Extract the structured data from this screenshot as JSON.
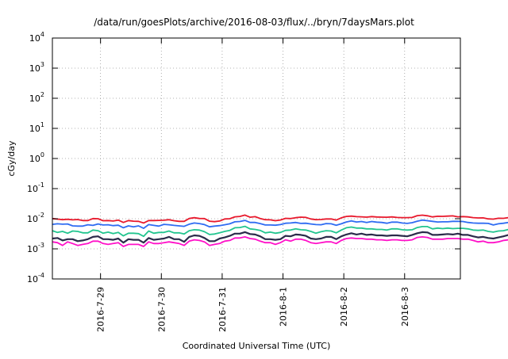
{
  "chart_data": {
    "type": "line",
    "title": "/data/run/goesPlots/archive/2016-08-03/flux/../bryn/7daysMars.plot",
    "xlabel": "Coordinated Universal Time (UTC)",
    "ylabel": "cGy/day",
    "yscale": "log",
    "ylim": [
      0.0001,
      10000
    ],
    "y_ticks": [
      {
        "base": "10",
        "exp": "-4"
      },
      {
        "base": "10",
        "exp": "-3"
      },
      {
        "base": "10",
        "exp": "-2"
      },
      {
        "base": "10",
        "exp": "-1"
      },
      {
        "base": "10",
        "exp": "0"
      },
      {
        "base": "10",
        "exp": "1"
      },
      {
        "base": "10",
        "exp": "2"
      },
      {
        "base": "10",
        "exp": "3"
      },
      {
        "base": "10",
        "exp": "4"
      }
    ],
    "x_ticks": [
      "2016-7-29",
      "2016-7-30",
      "2016-7-31",
      "2016-8-1",
      "2016-8-2",
      "2016-8-3"
    ],
    "xlim": [
      "2016-07-28T05:00",
      "2016-08-03T22:00"
    ],
    "grid": true,
    "x_step_hours": 2,
    "series": [
      {
        "color": "#e8192c",
        "values": [
          0.0101,
          0.0097,
          0.0093,
          0.0096,
          0.0092,
          0.0094,
          0.0087,
          0.0087,
          0.0101,
          0.01,
          0.0086,
          0.0087,
          0.0084,
          0.009,
          0.0075,
          0.0087,
          0.0083,
          0.0082,
          0.0072,
          0.0087,
          0.0087,
          0.0088,
          0.0089,
          0.0093,
          0.0086,
          0.0082,
          0.0082,
          0.0102,
          0.0108,
          0.0102,
          0.0101,
          0.0083,
          0.008,
          0.0084,
          0.0098,
          0.01,
          0.0116,
          0.0119,
          0.0132,
          0.0112,
          0.0117,
          0.0102,
          0.0093,
          0.0092,
          0.0086,
          0.0091,
          0.0103,
          0.0101,
          0.0108,
          0.0113,
          0.0111,
          0.0098,
          0.0093,
          0.0094,
          0.0098,
          0.0098,
          0.009,
          0.0107,
          0.0119,
          0.0122,
          0.0117,
          0.0116,
          0.0113,
          0.0118,
          0.0114,
          0.0113,
          0.0112,
          0.0115,
          0.011,
          0.0109,
          0.0109,
          0.011,
          0.0127,
          0.0131,
          0.0125,
          0.0115,
          0.0121,
          0.012,
          0.0122,
          0.0124,
          0.0116,
          0.0118,
          0.0115,
          0.0109,
          0.0106,
          0.0107,
          0.0099,
          0.0097,
          0.0104,
          0.0103,
          0.0109,
          0.0116,
          0.0125,
          0.0126,
          0.0128,
          0.0124,
          0.0122,
          0.0117,
          0.0111,
          0.0112,
          0.0107,
          0.0104,
          0.0108,
          0.0105,
          0.0102,
          0.0106,
          0.0118,
          0.0125,
          0.013,
          0.013,
          0.0132,
          0.0123,
          0.0106,
          0.0083,
          0.0086,
          0.0091,
          0.0098,
          0.0108,
          0.0111,
          0.0108,
          0.0115,
          0.0123,
          0.0124,
          0.0124,
          0.0125,
          0.0134,
          0.013,
          0.0116,
          0.0108,
          0.0091,
          0.0091,
          0.009,
          0.0099,
          0.009,
          0.0102,
          0.0095,
          0.0091,
          0.0099,
          0.0114,
          0.0126,
          0.0121,
          0.0114,
          0.01,
          0.0089,
          0.0081,
          0.0081,
          0.0082,
          0.0086,
          0.0085,
          0.0093,
          0.0101,
          0.0105,
          0.011,
          0.0114,
          0.011,
          0.0108,
          0.0115,
          0.0115,
          0.0121,
          0.0118,
          0.0114,
          0.0114,
          0.0117,
          0.0118,
          0.0129,
          0.013,
          0.0125,
          0.0127,
          0.0124,
          0.012,
          0.0109,
          0.0102,
          0.0101,
          0.0101,
          0.0107,
          0.0112,
          0.0117,
          0.0121,
          0.0125,
          0.0125,
          0.0128,
          0.0131,
          0.0129,
          0.0123,
          0.0121,
          0.0103,
          0.0091,
          0.0093,
          0.0091,
          0.0096,
          0.0103,
          0.0106
        ]
      },
      {
        "color": "#2f6cf2",
        "values": [
          0.0065,
          0.0068,
          0.0066,
          0.0067,
          0.0058,
          0.0057,
          0.0057,
          0.0063,
          0.006,
          0.0067,
          0.0062,
          0.0063,
          0.0059,
          0.0061,
          0.005,
          0.0058,
          0.0054,
          0.0058,
          0.0048,
          0.0064,
          0.006,
          0.0057,
          0.0065,
          0.0063,
          0.006,
          0.0058,
          0.0056,
          0.0066,
          0.0072,
          0.0069,
          0.0064,
          0.0054,
          0.0057,
          0.0059,
          0.0063,
          0.0068,
          0.0079,
          0.0081,
          0.0088,
          0.0075,
          0.0075,
          0.0069,
          0.0062,
          0.0062,
          0.0061,
          0.0064,
          0.0071,
          0.0072,
          0.0075,
          0.007,
          0.0071,
          0.0067,
          0.0064,
          0.0063,
          0.0069,
          0.0068,
          0.0061,
          0.0068,
          0.0078,
          0.0085,
          0.0078,
          0.0081,
          0.0075,
          0.0081,
          0.0077,
          0.0075,
          0.0071,
          0.0077,
          0.0077,
          0.0072,
          0.007,
          0.0074,
          0.0083,
          0.009,
          0.0086,
          0.0082,
          0.0078,
          0.0079,
          0.0079,
          0.0082,
          0.0082,
          0.0081,
          0.0075,
          0.0072,
          0.0071,
          0.0071,
          0.007,
          0.0062,
          0.0068,
          0.0071,
          0.0075,
          0.0075,
          0.0082,
          0.0086,
          0.0082,
          0.0079,
          0.0083,
          0.0077,
          0.0075,
          0.0071,
          0.0072,
          0.0069,
          0.007,
          0.0073,
          0.0065,
          0.0071,
          0.0083,
          0.0084,
          0.0083,
          0.0086,
          0.0088,
          0.0084,
          0.007,
          0.0057,
          0.0056,
          0.0061,
          0.0069,
          0.0069,
          0.0074,
          0.0073,
          0.0078,
          0.0081,
          0.0082,
          0.0083,
          0.0081,
          0.0088,
          0.0088,
          0.0074,
          0.0072,
          0.0061,
          0.006,
          0.0057,
          0.0064,
          0.0061,
          0.0067,
          0.0062,
          0.0061,
          0.0065,
          0.0078,
          0.0085,
          0.0081,
          0.0076,
          0.0066,
          0.0054,
          0.0053,
          0.0056,
          0.0056,
          0.0058,
          0.0058,
          0.006,
          0.007,
          0.0072,
          0.0075,
          0.0075,
          0.0071,
          0.0069,
          0.0079,
          0.0079,
          0.0078,
          0.0081,
          0.0079,
          0.0074,
          0.0078,
          0.0079,
          0.0083,
          0.0089,
          0.0083,
          0.0082,
          0.0082,
          0.0082,
          0.0073,
          0.0066,
          0.0064,
          0.0065,
          0.0069,
          0.0076,
          0.0077,
          0.0078,
          0.0081,
          0.0083,
          0.0087,
          0.0087,
          0.0084,
          0.0084,
          0.0082,
          0.0069,
          0.0061,
          0.0061,
          0.0062,
          0.0066,
          0.0065,
          0.0071
        ]
      },
      {
        "color": "#22c58f",
        "values": [
          0.004,
          0.0035,
          0.0038,
          0.0033,
          0.0039,
          0.0038,
          0.0034,
          0.0034,
          0.0042,
          0.004,
          0.0033,
          0.0036,
          0.0032,
          0.0035,
          0.0027,
          0.0033,
          0.0033,
          0.0032,
          0.0026,
          0.0039,
          0.0033,
          0.0035,
          0.0035,
          0.0039,
          0.0034,
          0.0034,
          0.0031,
          0.004,
          0.0043,
          0.0042,
          0.0037,
          0.003,
          0.0031,
          0.0034,
          0.0038,
          0.0041,
          0.005,
          0.0051,
          0.0056,
          0.0046,
          0.0044,
          0.0041,
          0.0034,
          0.0036,
          0.0033,
          0.0035,
          0.0041,
          0.0042,
          0.0046,
          0.0043,
          0.0042,
          0.0038,
          0.0033,
          0.0037,
          0.004,
          0.0039,
          0.0034,
          0.0042,
          0.005,
          0.0053,
          0.0049,
          0.0049,
          0.0046,
          0.0046,
          0.0044,
          0.0044,
          0.0042,
          0.0046,
          0.0046,
          0.0043,
          0.0042,
          0.0043,
          0.0051,
          0.0055,
          0.0055,
          0.0046,
          0.0049,
          0.0047,
          0.0049,
          0.0047,
          0.0048,
          0.0048,
          0.0046,
          0.0042,
          0.0041,
          0.0042,
          0.0038,
          0.0036,
          0.0039,
          0.004,
          0.0044,
          0.0047,
          0.005,
          0.0052,
          0.005,
          0.005,
          0.0049,
          0.0046,
          0.0042,
          0.0042,
          0.0041,
          0.0039,
          0.0043,
          0.0041,
          0.0038,
          0.0041,
          0.0049,
          0.0051,
          0.0052,
          0.0054,
          0.0054,
          0.0049,
          0.004,
          0.003,
          0.0031,
          0.0032,
          0.004,
          0.0041,
          0.0043,
          0.0043,
          0.0046,
          0.0048,
          0.0051,
          0.0049,
          0.0051,
          0.0055,
          0.0051,
          0.0044,
          0.004,
          0.0034,
          0.0034,
          0.0033,
          0.0037,
          0.0034,
          0.0039,
          0.0034,
          0.0035,
          0.004,
          0.0047,
          0.0052,
          0.0048,
          0.0043,
          0.0039,
          0.0031,
          0.0029,
          0.0031,
          0.0031,
          0.0032,
          0.003,
          0.0034,
          0.0041,
          0.0042,
          0.0045,
          0.0043,
          0.0044,
          0.004,
          0.0046,
          0.0047,
          0.0048,
          0.005,
          0.0046,
          0.0045,
          0.0045,
          0.0045,
          0.0052,
          0.0052,
          0.005,
          0.005,
          0.0046,
          0.0048,
          0.004,
          0.0038,
          0.0038,
          0.0036,
          0.0041,
          0.0043,
          0.0045,
          0.0048,
          0.0047,
          0.005,
          0.0054,
          0.0052,
          0.0049,
          0.005,
          0.0047,
          0.0038,
          0.0033,
          0.0035,
          0.0035,
          0.0038,
          0.0036,
          0.0041
        ]
      },
      {
        "color": "#2b2b4a",
        "values": [
          0.0022,
          0.0023,
          0.0019,
          0.0021,
          0.0021,
          0.0018,
          0.0019,
          0.0021,
          0.0025,
          0.0026,
          0.0021,
          0.0021,
          0.002,
          0.0022,
          0.0016,
          0.0021,
          0.002,
          0.002,
          0.0016,
          0.0023,
          0.002,
          0.0021,
          0.0022,
          0.0025,
          0.0021,
          0.0021,
          0.0017,
          0.0025,
          0.0028,
          0.0027,
          0.0023,
          0.0018,
          0.0018,
          0.0022,
          0.0024,
          0.0027,
          0.0032,
          0.0032,
          0.0036,
          0.0031,
          0.003,
          0.0026,
          0.0021,
          0.0021,
          0.002,
          0.0021,
          0.0027,
          0.0026,
          0.003,
          0.0029,
          0.0027,
          0.0022,
          0.0021,
          0.0022,
          0.0025,
          0.0025,
          0.0021,
          0.0026,
          0.003,
          0.0033,
          0.003,
          0.0032,
          0.0029,
          0.003,
          0.0028,
          0.0028,
          0.0027,
          0.0028,
          0.0028,
          0.0027,
          0.0026,
          0.0029,
          0.0033,
          0.0036,
          0.0035,
          0.0029,
          0.0029,
          0.003,
          0.0031,
          0.003,
          0.0032,
          0.0029,
          0.0029,
          0.0026,
          0.0024,
          0.0025,
          0.0023,
          0.0022,
          0.0024,
          0.0026,
          0.0029,
          0.003,
          0.0031,
          0.0031,
          0.0033,
          0.0033,
          0.0032,
          0.003,
          0.0027,
          0.0026,
          0.0025,
          0.0024,
          0.0027,
          0.0026,
          0.0023,
          0.0026,
          0.0032,
          0.0034,
          0.0033,
          0.0034,
          0.0034,
          0.0031,
          0.0026,
          0.0018,
          0.0019,
          0.0021,
          0.0025,
          0.0026,
          0.0028,
          0.0027,
          0.0029,
          0.0031,
          0.0032,
          0.0031,
          0.0033,
          0.0035,
          0.0032,
          0.0026,
          0.0026,
          0.0021,
          0.002,
          0.0021,
          0.0023,
          0.0021,
          0.0023,
          0.0022,
          0.0022,
          0.0025,
          0.0031,
          0.0032,
          0.003,
          0.0029,
          0.0025,
          0.0019,
          0.0018,
          0.002,
          0.0018,
          0.0021,
          0.002,
          0.0022,
          0.0024,
          0.0028,
          0.0028,
          0.0028,
          0.0027,
          0.0026,
          0.0029,
          0.0031,
          0.003,
          0.0032,
          0.003,
          0.0029,
          0.0029,
          0.0029,
          0.0033,
          0.0035,
          0.0032,
          0.0032,
          0.003,
          0.0029,
          0.0027,
          0.0024,
          0.0024,
          0.0023,
          0.0025,
          0.0028,
          0.0028,
          0.0031,
          0.0029,
          0.0031,
          0.0035,
          0.0034,
          0.0032,
          0.0031,
          0.0029,
          0.0024,
          0.002,
          0.0021,
          0.0021,
          0.0025,
          0.0022,
          0.0027
        ]
      },
      {
        "color": "#ff10c8",
        "values": [
          0.0017,
          0.0016,
          0.0013,
          0.0017,
          0.0015,
          0.0013,
          0.0014,
          0.0015,
          0.0018,
          0.0018,
          0.0015,
          0.0014,
          0.0015,
          0.0016,
          0.0012,
          0.0014,
          0.0014,
          0.0014,
          0.0012,
          0.0017,
          0.0015,
          0.0015,
          0.0016,
          0.0017,
          0.0016,
          0.0015,
          0.0013,
          0.0018,
          0.002,
          0.0019,
          0.0017,
          0.0013,
          0.0014,
          0.0015,
          0.0018,
          0.0019,
          0.0023,
          0.0023,
          0.0025,
          0.0022,
          0.0021,
          0.0018,
          0.0016,
          0.0016,
          0.0014,
          0.0016,
          0.002,
          0.0018,
          0.0021,
          0.0021,
          0.0019,
          0.0016,
          0.0015,
          0.0016,
          0.0017,
          0.0017,
          0.0015,
          0.0019,
          0.0022,
          0.0023,
          0.0022,
          0.0022,
          0.0021,
          0.0021,
          0.002,
          0.002,
          0.0019,
          0.002,
          0.002,
          0.0019,
          0.0019,
          0.002,
          0.0024,
          0.0025,
          0.0024,
          0.0021,
          0.0021,
          0.0021,
          0.0022,
          0.0022,
          0.0022,
          0.0021,
          0.0021,
          0.0019,
          0.0017,
          0.0018,
          0.0016,
          0.0016,
          0.0017,
          0.0019,
          0.002,
          0.0021,
          0.0022,
          0.0023,
          0.0023,
          0.0023,
          0.0022,
          0.0021,
          0.002,
          0.0018,
          0.0018,
          0.0017,
          0.0019,
          0.0018,
          0.0016,
          0.0018,
          0.0023,
          0.0024,
          0.0024,
          0.0025,
          0.0024,
          0.0022,
          0.0018,
          0.0013,
          0.0013,
          0.0015,
          0.0018,
          0.0018,
          0.0019,
          0.0019,
          0.0021,
          0.0022,
          0.0023,
          0.0022,
          0.0023,
          0.0025,
          0.0023,
          0.0019,
          0.0018,
          0.0015,
          0.0015,
          0.0015,
          0.0016,
          0.0015,
          0.0017,
          0.0016,
          0.0015,
          0.0018,
          0.0021,
          0.0023,
          0.0021,
          0.002,
          0.0018,
          0.0014,
          0.0013,
          0.0014,
          0.0013,
          0.0015,
          0.0014,
          0.0015,
          0.0017,
          0.0019,
          0.002,
          0.002,
          0.0019,
          0.0019,
          0.0021,
          0.0021,
          0.0022,
          0.0022,
          0.0021,
          0.002,
          0.0021,
          0.0021,
          0.0023,
          0.0024,
          0.0023,
          0.0023,
          0.0022,
          0.0021,
          0.0019,
          0.0017,
          0.0017,
          0.0016,
          0.0018,
          0.0019,
          0.002,
          0.0022,
          0.0021,
          0.0022,
          0.0024,
          0.0024,
          0.0022,
          0.0022,
          0.0021,
          0.0017,
          0.0014,
          0.0015,
          0.0015,
          0.0018,
          0.0016,
          0.0019
        ]
      }
    ]
  }
}
